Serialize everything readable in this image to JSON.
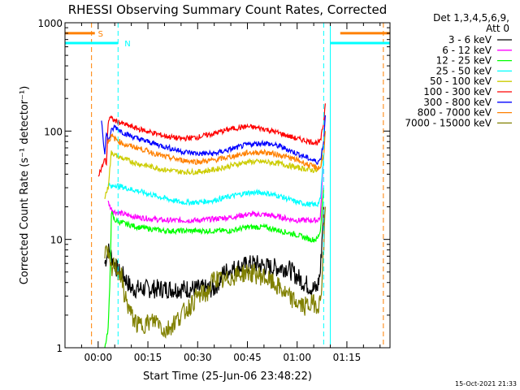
{
  "chart_data": {
    "type": "line",
    "title": "RHESSI Observing Summary Count Rates, Corrected",
    "xlabel": "Start Time (25-Jun-06 23:48:22)",
    "ylabel": "Corrected Count Rate (s⁻¹ detector⁻¹)",
    "yscale": "log",
    "ylim": [
      1,
      1000
    ],
    "xlim_minutes": [
      -10,
      88
    ],
    "x_ticks": [
      "00:00",
      "00:15",
      "00:30",
      "00:45",
      "01:00",
      "01:15"
    ],
    "x_tick_minutes": [
      0,
      15,
      30,
      45,
      60,
      75
    ],
    "y_ticks": [
      "1",
      "10",
      "100",
      "1000"
    ],
    "y_tick_values": [
      1,
      10,
      100,
      1000
    ],
    "legend": {
      "header": [
        "Det 1,3,4,5,6,9,",
        "Att 0"
      ],
      "placement": "right-outside-top"
    },
    "series": [
      {
        "name": "3 - 6 keV",
        "color": "#000000",
        "x": [
          2,
          3,
          4,
          5,
          6,
          8,
          10,
          15,
          25,
          30,
          35,
          38,
          42,
          47,
          52,
          57,
          62,
          65,
          66,
          67,
          68
        ],
        "y": [
          6,
          8,
          7,
          6,
          5,
          4.5,
          3.5,
          3.5,
          3.5,
          3.5,
          3.5,
          5,
          5.5,
          6,
          5.5,
          5.5,
          4,
          3.5,
          3.5,
          5,
          20
        ]
      },
      {
        "name": "6 - 12 keV",
        "color": "#ff00ff",
        "x": [
          3,
          4,
          5,
          8,
          12,
          20,
          30,
          40,
          45,
          50,
          55,
          60,
          64,
          66,
          67,
          68
        ],
        "y": [
          22,
          19,
          18,
          17,
          16,
          15,
          15,
          16,
          17,
          17,
          16,
          15,
          15,
          15,
          16,
          60
        ]
      },
      {
        "name": "12 - 25 keV",
        "color": "#00ff00",
        "x": [
          2,
          3,
          3.5,
          4,
          4.5,
          5,
          8,
          12,
          20,
          30,
          40,
          45,
          50,
          55,
          60,
          64,
          66,
          67,
          68
        ],
        "y": [
          1,
          1.5,
          3.5,
          18,
          16,
          15,
          14,
          13,
          12,
          12,
          12,
          13,
          13,
          12,
          11,
          10,
          10,
          12,
          30
        ]
      },
      {
        "name": "25 - 50 keV",
        "color": "#00ffff",
        "x": [
          3,
          4,
          5,
          8,
          12,
          20,
          25,
          30,
          35,
          40,
          45,
          50,
          55,
          60,
          64,
          66,
          67,
          68
        ],
        "y": [
          33,
          30,
          32,
          30,
          28,
          24,
          22,
          22,
          23,
          25,
          27,
          27,
          25,
          22,
          21,
          21,
          23,
          60
        ]
      },
      {
        "name": "50 - 100 keV",
        "color": "#cccc00",
        "x": [
          2,
          3,
          4,
          5,
          8,
          12,
          20,
          25,
          30,
          35,
          40,
          45,
          50,
          55,
          60,
          64,
          66,
          67,
          68
        ],
        "y": [
          25,
          30,
          65,
          60,
          55,
          50,
          44,
          42,
          42,
          44,
          48,
          52,
          52,
          50,
          46,
          44,
          43,
          45,
          80
        ]
      },
      {
        "name": "100 - 300 keV",
        "color": "#ff0000",
        "x": [
          0,
          1,
          2,
          2.5,
          3,
          3.5,
          4,
          5,
          8,
          12,
          20,
          25,
          30,
          35,
          40,
          45,
          50,
          55,
          60,
          64,
          66,
          67,
          68,
          68.5
        ],
        "y": [
          40,
          45,
          55,
          50,
          120,
          135,
          130,
          125,
          115,
          105,
          90,
          85,
          88,
          95,
          105,
          110,
          105,
          95,
          85,
          80,
          78,
          80,
          120,
          180
        ]
      },
      {
        "name": "300 - 800 keV",
        "color": "#0000ff",
        "x": [
          1,
          2,
          2.5,
          3,
          4,
          5,
          8,
          12,
          20,
          25,
          30,
          35,
          40,
          45,
          50,
          55,
          60,
          64,
          66,
          67,
          68,
          68.5
        ],
        "y": [
          130,
          60,
          100,
          80,
          100,
          110,
          95,
          85,
          72,
          65,
          62,
          62,
          68,
          75,
          78,
          72,
          62,
          55,
          52,
          54,
          80,
          140
        ]
      },
      {
        "name": "800 - 7000 keV",
        "color": "#ff8000",
        "x": [
          3,
          4,
          5,
          8,
          12,
          20,
          25,
          30,
          35,
          40,
          45,
          50,
          55,
          60,
          64,
          66,
          67,
          68,
          68.5
        ],
        "y": [
          80,
          90,
          85,
          75,
          70,
          58,
          54,
          52,
          54,
          58,
          63,
          64,
          60,
          54,
          48,
          46,
          46,
          60,
          100
        ]
      },
      {
        "name": "7000 - 15000 keV",
        "color": "#808000",
        "x": [
          2,
          3,
          4,
          5,
          6,
          7,
          8,
          10,
          12,
          15,
          18,
          20,
          22,
          25,
          28,
          30,
          33,
          35,
          38,
          40,
          45,
          50,
          55,
          57,
          60,
          62,
          64,
          65,
          66,
          67,
          68,
          68.5
        ],
        "y": [
          8,
          7,
          5,
          6,
          5,
          4.5,
          3,
          2,
          1.6,
          1.7,
          1.8,
          1.4,
          1.6,
          2,
          2.5,
          3,
          3.2,
          4.5,
          4,
          4.5,
          5,
          4.5,
          3.5,
          3,
          2.6,
          2.4,
          2.5,
          2.6,
          2.5,
          2.6,
          8,
          20
        ]
      }
    ],
    "attenuator": {
      "label": "S",
      "color": "#ff8000",
      "line_level": 800,
      "segments": [
        [
          -10,
          -1
        ],
        [
          73,
          88
        ]
      ],
      "dashed_x": [
        -2,
        86
      ]
    },
    "night": {
      "label": "N",
      "color": "#00ffff",
      "line_level": 650,
      "segments": [
        [
          -10,
          6
        ],
        [
          70,
          88
        ]
      ],
      "dashed_x": [
        6,
        68
      ],
      "solid_x": [
        -10,
        70
      ]
    },
    "grid": false
  },
  "footer": {
    "timestamp": "15-Oct-2021 21:33"
  }
}
